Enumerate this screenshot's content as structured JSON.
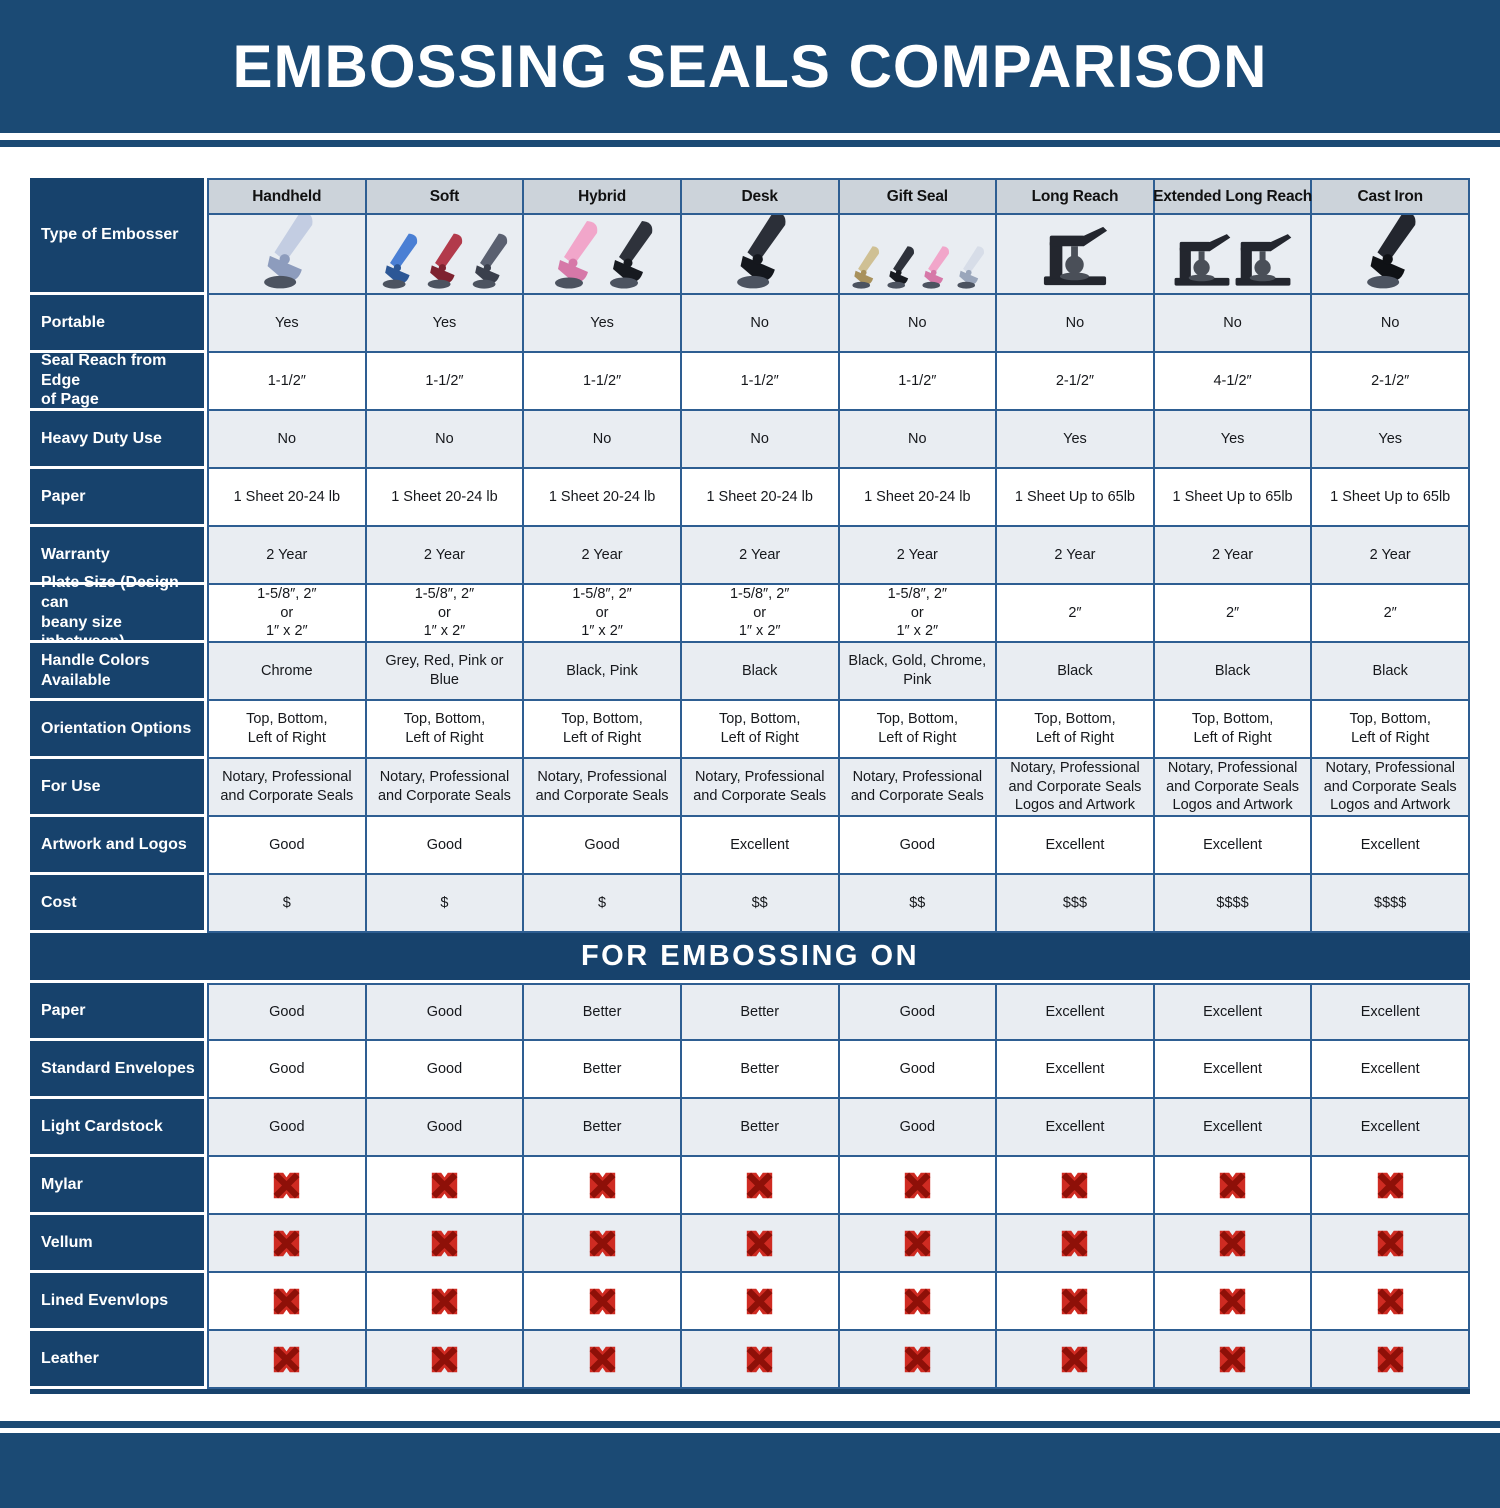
{
  "title": "EMBOSSING SEALS COMPARISON",
  "embossing_section_title": "FOR EMBOSSING ON",
  "type_row_label": "Type of Embosser",
  "colors": {
    "navy_band": "#1b4a74",
    "label_navy": "#17426c",
    "grid_blue": "#2e5e92",
    "row_stripe": "#e9edf2",
    "header_gray": "#ccd3da",
    "x_red": "#cf2b22",
    "x_dark_red": "#8e1008"
  },
  "x_mark": {
    "fill": "#cf2b22",
    "stroke": "#8e1008"
  },
  "columns": [
    {
      "label": "Handheld",
      "units": [
        {
          "shape": "clamp",
          "body": "#c3cde2",
          "trim": "#8d9cbd"
        }
      ]
    },
    {
      "label": "Soft",
      "units": [
        {
          "shape": "clamp",
          "body": "#4a7fd4",
          "trim": "#2c5796"
        },
        {
          "shape": "clamp",
          "body": "#b23a4b",
          "trim": "#7e2230"
        },
        {
          "shape": "clamp",
          "body": "#5a6070",
          "trim": "#3a3f4c"
        }
      ]
    },
    {
      "label": "Hybrid",
      "units": [
        {
          "shape": "clamp",
          "body": "#f1a6ca",
          "trim": "#d678a8"
        },
        {
          "shape": "clamp",
          "body": "#2e323b",
          "trim": "#171a20"
        }
      ]
    },
    {
      "label": "Desk",
      "units": [
        {
          "shape": "clamp",
          "body": "#2b2f38",
          "trim": "#14171d"
        }
      ]
    },
    {
      "label": "Gift Seal",
      "units": [
        {
          "shape": "clamp",
          "body": "#cfc094",
          "trim": "#a8915c"
        },
        {
          "shape": "clamp",
          "body": "#2e323b",
          "trim": "#171a20"
        },
        {
          "shape": "clamp",
          "body": "#f1a6ca",
          "trim": "#d678a8"
        },
        {
          "shape": "clamp",
          "body": "#d7dde8",
          "trim": "#9aa6bb"
        }
      ]
    },
    {
      "label": "Long Reach",
      "units": [
        {
          "shape": "press",
          "body": "#23262e",
          "trim": "#4a4f58"
        }
      ]
    },
    {
      "label": "Extended Long Reach",
      "units": [
        {
          "shape": "press",
          "body": "#23262e",
          "trim": "#4a4f58"
        },
        {
          "shape": "press",
          "body": "#23262e",
          "trim": "#4a4f58"
        }
      ]
    },
    {
      "label": "Cast Iron",
      "units": [
        {
          "shape": "clamp",
          "body": "#23262e",
          "trim": "#0f1115"
        }
      ]
    }
  ],
  "rows": [
    {
      "key": "portable",
      "label": "Portable",
      "values": [
        "Yes",
        "Yes",
        "Yes",
        "No",
        "No",
        "No",
        "No",
        "No"
      ]
    },
    {
      "key": "seal-reach",
      "label": "Seal Reach from Edge\nof Page",
      "values": [
        "1-1/2″",
        "1-1/2″",
        "1-1/2″",
        "1-1/2″",
        "1-1/2″",
        "2-1/2″",
        "4-1/2″",
        "2-1/2″"
      ]
    },
    {
      "key": "heavy-duty-use",
      "label": "Heavy Duty Use",
      "values": [
        "No",
        "No",
        "No",
        "No",
        "No",
        "Yes",
        "Yes",
        "Yes"
      ]
    },
    {
      "key": "paper",
      "label": "Paper",
      "values": [
        "1 Sheet 20-24 lb",
        "1 Sheet 20-24 lb",
        "1 Sheet 20-24 lb",
        "1 Sheet 20-24 lb",
        "1 Sheet 20-24 lb",
        "1 Sheet Up to 65lb",
        "1 Sheet Up to 65lb",
        "1 Sheet Up to 65lb"
      ]
    },
    {
      "key": "warranty",
      "label": "Warranty",
      "values": [
        "2 Year",
        "2 Year",
        "2 Year",
        "2 Year",
        "2 Year",
        "2 Year",
        "2 Year",
        "2 Year"
      ]
    },
    {
      "key": "plate-size",
      "label": "Plate Size (Design can\nbeany size inbetween)",
      "values": [
        "1-5/8″, 2″\nor\n1″ x 2″",
        "1-5/8″, 2″\nor\n1″ x 2″",
        "1-5/8″, 2″\nor\n1″ x 2″",
        "1-5/8″, 2″\nor\n1″ x 2″",
        "1-5/8″, 2″\nor\n1″ x 2″",
        "2″",
        "2″",
        "2″"
      ]
    },
    {
      "key": "handle-colors",
      "label": "Handle Colors Available",
      "values": [
        "Chrome",
        "Grey, Red, Pink or Blue",
        "Black, Pink",
        "Black",
        "Black, Gold, Chrome, Pink",
        "Black",
        "Black",
        "Black"
      ]
    },
    {
      "key": "orientation-options",
      "label": "Orientation Options",
      "values": [
        "Top, Bottom,\nLeft of Right",
        "Top, Bottom,\nLeft of Right",
        "Top, Bottom,\nLeft of Right",
        "Top, Bottom,\nLeft of Right",
        "Top, Bottom,\nLeft of Right",
        "Top, Bottom,\nLeft of Right",
        "Top, Bottom,\nLeft of Right",
        "Top, Bottom,\nLeft of Right"
      ]
    },
    {
      "key": "for-use",
      "label": "For Use",
      "values": [
        "Notary, Professional\nand Corporate Seals",
        "Notary, Professional\nand Corporate Seals",
        "Notary, Professional\nand Corporate Seals",
        "Notary, Professional\nand Corporate Seals",
        "Notary, Professional\nand Corporate Seals",
        "Notary, Professional\nand Corporate Seals\nLogos and Artwork",
        "Notary, Professional\nand Corporate Seals\nLogos and Artwork",
        "Notary, Professional\nand Corporate Seals\nLogos and Artwork"
      ]
    },
    {
      "key": "artwork-and-logos",
      "label": "Artwork and Logos",
      "values": [
        "Good",
        "Good",
        "Good",
        "Excellent",
        "Good",
        "Excellent",
        "Excellent",
        "Excellent"
      ]
    },
    {
      "key": "cost",
      "label": "Cost",
      "values": [
        "$",
        "$",
        "$",
        "$$",
        "$$",
        "$$$",
        "$$$$",
        "$$$$"
      ]
    }
  ],
  "embossing_rows": [
    {
      "key": "paper",
      "label": "Paper",
      "values": [
        "Good",
        "Good",
        "Better",
        "Better",
        "Good",
        "Excellent",
        "Excellent",
        "Excellent"
      ]
    },
    {
      "key": "standard-envelopes",
      "label": "Standard Envelopes",
      "values": [
        "Good",
        "Good",
        "Better",
        "Better",
        "Good",
        "Excellent",
        "Excellent",
        "Excellent"
      ]
    },
    {
      "key": "light-cardstock",
      "label": "Light Cardstock",
      "values": [
        "Good",
        "Good",
        "Better",
        "Better",
        "Good",
        "Excellent",
        "Excellent",
        "Excellent"
      ]
    },
    {
      "key": "mylar",
      "label": "Mylar",
      "x": true
    },
    {
      "key": "vellum",
      "label": "Vellum",
      "x": true
    },
    {
      "key": "lined-evenvlops",
      "label": "Lined Evenvlops",
      "x": true
    },
    {
      "key": "leather",
      "label": "Leather",
      "x": true
    }
  ]
}
